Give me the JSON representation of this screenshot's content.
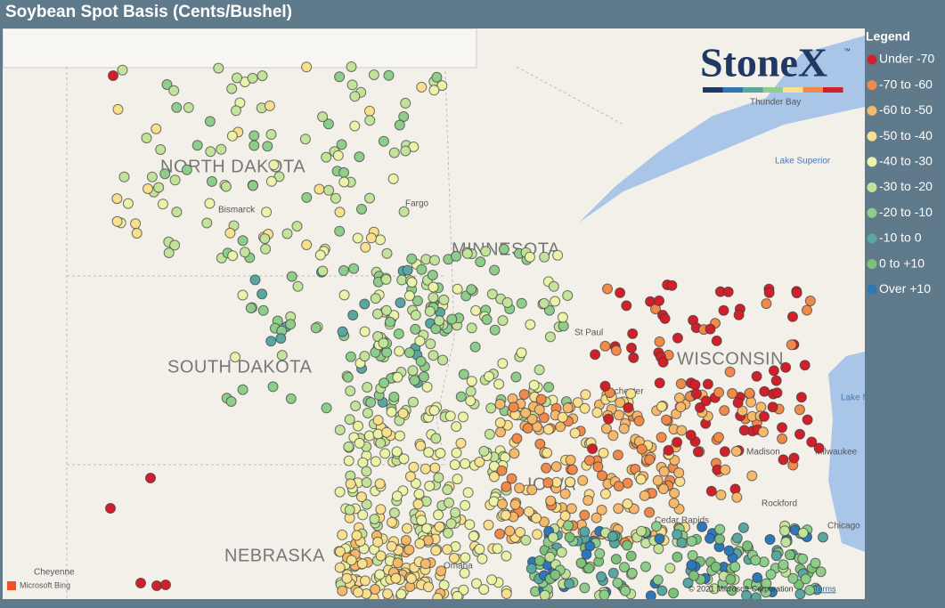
{
  "header": {
    "title": "Soybean Spot Basis (Cents/Bushel)"
  },
  "legend": {
    "title": "Legend",
    "items": [
      {
        "label": "Under -70",
        "color": "#d0202a"
      },
      {
        "label": "-70 to -60",
        "color": "#f08a4b"
      },
      {
        "label": "-60 to -50",
        "color": "#f6b96b"
      },
      {
        "label": "-50 to -40",
        "color": "#f8e08e"
      },
      {
        "label": "-40 to -30",
        "color": "#eaf3a8"
      },
      {
        "label": "-30 to -20",
        "color": "#c4e39a"
      },
      {
        "label": "-20 to -10",
        "color": "#8fcd8a"
      },
      {
        "label": "-10 to 0",
        "color": "#5aa6a0"
      },
      {
        "label": "0 to +10",
        "color": "#7dc27a"
      },
      {
        "label": "Over +10",
        "color": "#2e77b8"
      }
    ]
  },
  "logo": {
    "text": "StoneX",
    "trademark": "™"
  },
  "map_labels": {
    "states": [
      "NORTH DAKOTA",
      "SOUTH DAKOTA",
      "MINNESOTA",
      "WISCONSIN",
      "IOWA",
      "NEBRASKA"
    ],
    "cities": [
      "Bismarck",
      "Fargo",
      "St Paul",
      "Rochester",
      "Madison",
      "Milwaukee",
      "Chicago",
      "Cheyenne",
      "Thunder Bay",
      "Rockford",
      "Omaha",
      "Cedar Rapids"
    ],
    "water": [
      "Lake Superior",
      "Lake Michigan"
    ]
  },
  "footer": {
    "bing": "Microsoft Bing",
    "copyright": "© 2021 Microsoft Corporation",
    "terms": "Terms"
  }
}
